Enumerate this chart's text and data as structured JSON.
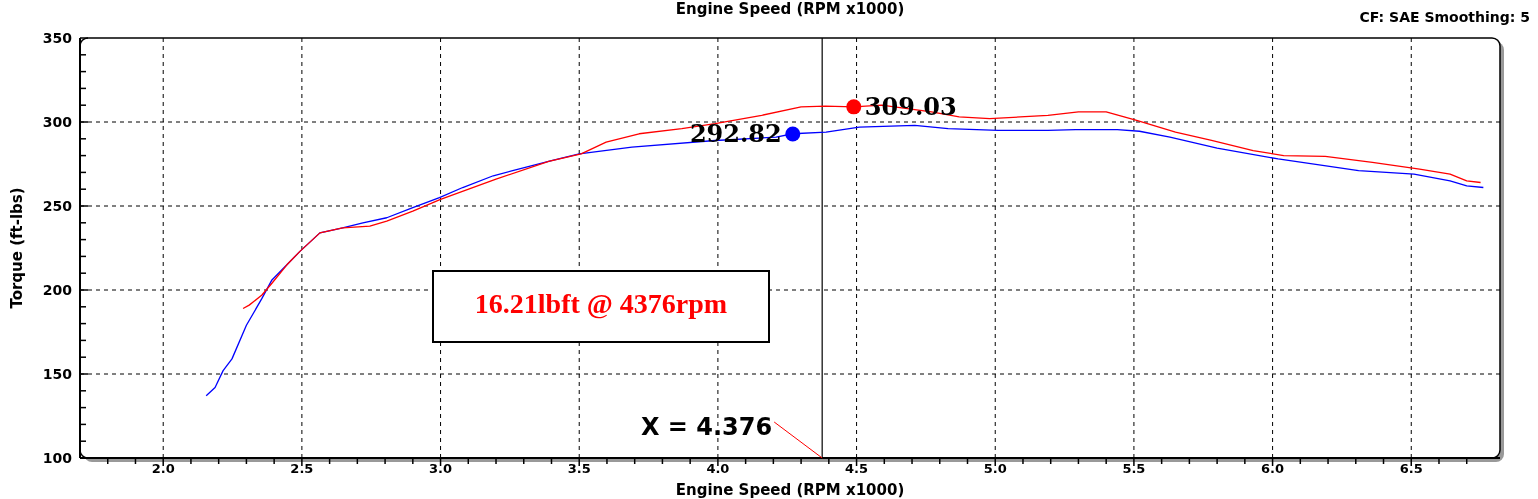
{
  "chart_data": {
    "type": "line",
    "title": "Engine Speed (RPM x1000)",
    "xlabel": "Engine Speed (RPM x1000)",
    "ylabel": "Torque (ft-lbs)",
    "annotations": [
      "CF: SAE  Smoothing: 5",
      "16.21lbft @ 4376rpm"
    ],
    "xlim": [
      1.7,
      6.82
    ],
    "ylim": [
      100,
      350
    ],
    "xticks": [
      {
        "value": 1.8,
        "label": null
      },
      {
        "value": 1.9,
        "label": null
      },
      {
        "value": 2.0,
        "label": "2.0"
      },
      {
        "value": 2.1,
        "label": null
      },
      {
        "value": 2.2,
        "label": null
      },
      {
        "value": 2.3,
        "label": null
      },
      {
        "value": 2.4,
        "label": null
      },
      {
        "value": 2.5,
        "label": "2.5"
      },
      {
        "value": 2.6,
        "label": null
      },
      {
        "value": 2.7,
        "label": null
      },
      {
        "value": 2.8,
        "label": null
      },
      {
        "value": 2.9,
        "label": null
      },
      {
        "value": 3.0,
        "label": "3.0"
      },
      {
        "value": 3.1,
        "label": null
      },
      {
        "value": 3.2,
        "label": null
      },
      {
        "value": 3.3,
        "label": null
      },
      {
        "value": 3.4,
        "label": null
      },
      {
        "value": 3.5,
        "label": "3.5"
      },
      {
        "value": 3.6,
        "label": null
      },
      {
        "value": 3.7,
        "label": null
      },
      {
        "value": 3.8,
        "label": null
      },
      {
        "value": 3.9,
        "label": null
      },
      {
        "value": 4.0,
        "label": "4.0"
      },
      {
        "value": 4.1,
        "label": null
      },
      {
        "value": 4.2,
        "label": null
      },
      {
        "value": 4.3,
        "label": null
      },
      {
        "value": 4.4,
        "label": null
      },
      {
        "value": 4.5,
        "label": "4.5"
      },
      {
        "value": 4.6,
        "label": null
      },
      {
        "value": 4.7,
        "label": null
      },
      {
        "value": 4.8,
        "label": null
      },
      {
        "value": 4.9,
        "label": null
      },
      {
        "value": 5.0,
        "label": "5.0"
      },
      {
        "value": 5.1,
        "label": null
      },
      {
        "value": 5.2,
        "label": null
      },
      {
        "value": 5.3,
        "label": null
      },
      {
        "value": 5.4,
        "label": null
      },
      {
        "value": 5.5,
        "label": "5.5"
      },
      {
        "value": 5.6,
        "label": null
      },
      {
        "value": 5.7,
        "label": null
      },
      {
        "value": 5.8,
        "label": null
      },
      {
        "value": 5.9,
        "label": null
      },
      {
        "value": 6.0,
        "label": "6.0"
      },
      {
        "value": 6.1,
        "label": null
      },
      {
        "value": 6.2,
        "label": null
      },
      {
        "value": 6.3,
        "label": null
      },
      {
        "value": 6.4,
        "label": null
      },
      {
        "value": 6.5,
        "label": "6.5"
      },
      {
        "value": 6.6,
        "label": null
      },
      {
        "value": 6.7,
        "label": null
      }
    ],
    "yticks": [
      100,
      {
        "value": 110,
        "label": null
      },
      {
        "value": 120,
        "label": null
      },
      {
        "value": 130,
        "label": null
      },
      {
        "value": 140,
        "label": null
      },
      150,
      {
        "value": 160,
        "label": null
      },
      {
        "value": 170,
        "label": null
      },
      {
        "value": 180,
        "label": null
      },
      {
        "value": 190,
        "label": null
      },
      200,
      {
        "value": 210,
        "label": null
      },
      {
        "value": 220,
        "label": null
      },
      {
        "value": 230,
        "label": null
      },
      {
        "value": 240,
        "label": null
      },
      250,
      {
        "value": 260,
        "label": null
      },
      {
        "value": 270,
        "label": null
      },
      {
        "value": 280,
        "label": null
      },
      {
        "value": 290,
        "label": null
      },
      300,
      {
        "value": 310,
        "label": null
      },
      {
        "value": 320,
        "label": null
      },
      {
        "value": 330,
        "label": null
      },
      {
        "value": 340,
        "label": null
      },
      350
    ],
    "grid": true,
    "ref_lines": [
      {
        "axis": "x",
        "value": 4.376,
        "label": "X = 4.376",
        "color": "#000000"
      }
    ],
    "series": [
      {
        "color": "#0000ff",
        "x": [
          2.155,
          2.187,
          2.216,
          2.248,
          2.3,
          2.356,
          2.392,
          2.446,
          2.493,
          2.565,
          2.647,
          2.72,
          2.806,
          2.9,
          2.996,
          3.08,
          3.19,
          3.26,
          3.4,
          3.5,
          3.69,
          3.99,
          4.21,
          4.27,
          4.39,
          4.51,
          4.71,
          4.83,
          5.01,
          5.19,
          5.29,
          5.44,
          5.52,
          5.63,
          5.8,
          6.02,
          6.31,
          6.51,
          6.64,
          6.7,
          6.76
        ],
        "values": [
          137,
          142,
          152,
          159,
          179,
          195,
          206,
          215,
          223,
          234,
          237,
          240,
          243,
          249,
          255,
          261,
          268,
          271,
          277,
          281,
          285,
          289,
          291,
          293,
          294,
          297,
          298,
          296,
          295,
          295,
          295.5,
          295.5,
          294.5,
          291,
          284.5,
          278,
          271,
          269,
          265,
          262,
          261
        ]
      },
      {
        "color": "#ff0000",
        "x": [
          2.288,
          2.31,
          2.356,
          2.392,
          2.446,
          2.493,
          2.565,
          2.647,
          2.745,
          2.806,
          2.9,
          3.0,
          3.2,
          3.39,
          3.507,
          3.597,
          3.716,
          3.87,
          3.99,
          4.158,
          4.3,
          4.388,
          4.49,
          4.59,
          4.77,
          4.87,
          4.98,
          5.09,
          5.19,
          5.3,
          5.4,
          5.51,
          5.65,
          5.78,
          5.93,
          6.04,
          6.19,
          6.36,
          6.53,
          6.64,
          6.7,
          6.75
        ],
        "values": [
          189,
          191,
          197,
          204,
          215,
          223,
          234,
          237,
          238,
          241,
          247,
          254,
          266,
          276.5,
          281,
          288,
          293,
          296,
          299,
          304,
          309,
          309.5,
          309,
          310,
          306,
          303,
          302,
          303,
          304,
          306,
          306,
          301,
          294,
          289,
          283,
          280,
          279.5,
          276,
          272,
          269,
          265,
          264
        ]
      },
      {
        "type": "scatter",
        "color": "#0000ff",
        "marker": "circle",
        "x": [
          4.27
        ],
        "values": [
          292.82
        ],
        "value_labels": [
          "292.82"
        ]
      },
      {
        "type": "scatter",
        "color": "#ff0000",
        "marker": "circle",
        "x": [
          4.49
        ],
        "values": [
          309.03
        ],
        "value_labels": [
          "309.03"
        ]
      }
    ]
  }
}
